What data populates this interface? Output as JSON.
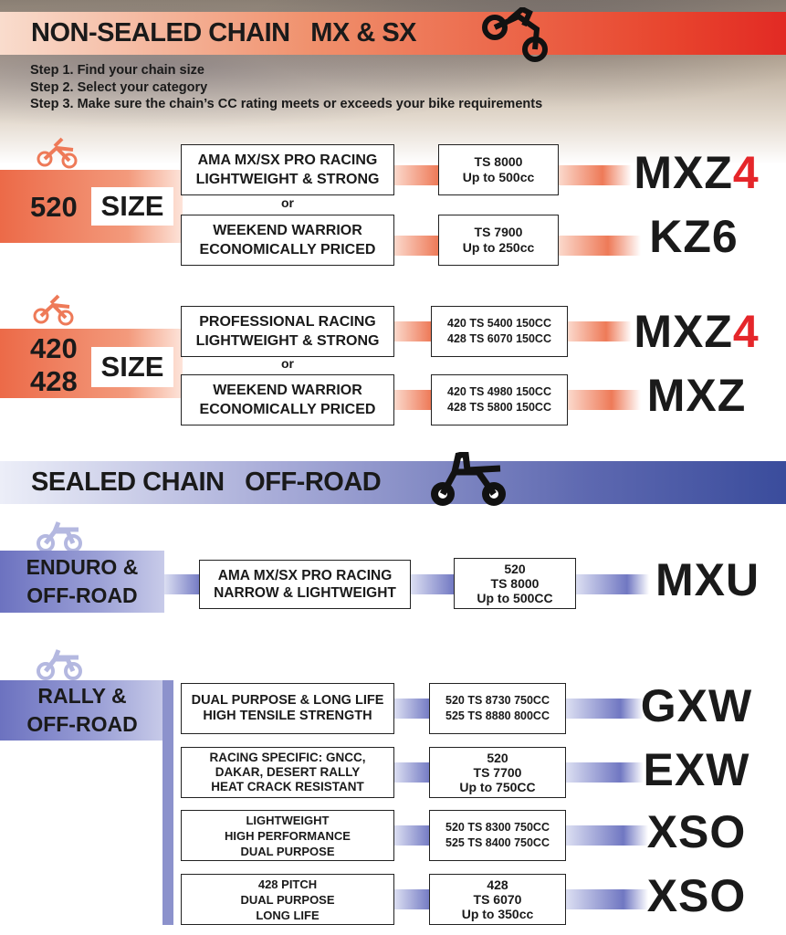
{
  "colors": {
    "non_sealed_accent": "#e8452e",
    "sealed_accent": "#3a4c9c",
    "highlight": "#e5262a"
  },
  "non_sealed": {
    "title": "NON-SEALED CHAIN   MX & SX",
    "steps": [
      "Step 1. Find your chain size",
      "Step 2. Select your category",
      "Step 3. Make sure the chain’s CC rating meets or exceeds your bike requirements"
    ],
    "groups": [
      {
        "size_num": "520",
        "size_label": "SIZE",
        "or": "or",
        "rows": [
          {
            "desc": "AMA MX/SX PRO RACING\nLIGHTWEIGHT & STRONG",
            "spec": "TS 8000\nUp to 500cc",
            "product": "MXZ",
            "product_suffix": "4"
          },
          {
            "desc": "WEEKEND WARRIOR\nECONOMICALLY PRICED",
            "spec": "TS 7900\nUp to 250cc",
            "product": "KZ6",
            "product_suffix": ""
          }
        ]
      },
      {
        "size_num": "420\n428",
        "size_label": "SIZE",
        "or": "or",
        "rows": [
          {
            "desc": "PROFESSIONAL RACING\nLIGHTWEIGHT & STRONG",
            "spec": "420  TS 5400  150CC\n428  TS 6070  150CC",
            "product": "MXZ",
            "product_suffix": "4"
          },
          {
            "desc": "WEEKEND WARRIOR\nECONOMICALLY PRICED",
            "spec": "420  TS 4980  150CC\n428  TS 5800  150CC",
            "product": "MXZ",
            "product_suffix": ""
          }
        ]
      }
    ]
  },
  "sealed": {
    "title": "SEALED CHAIN   OFF-ROAD",
    "enduro": {
      "label": "ENDURO &\nOFF-ROAD",
      "rows": [
        {
          "desc": "AMA MX/SX PRO RACING\nNARROW & LIGHTWEIGHT",
          "spec": "520\nTS 8000\nUp to 500CC",
          "product": "MXU"
        }
      ]
    },
    "rally": {
      "label": "RALLY &\nOFF-ROAD",
      "rows": [
        {
          "desc": "DUAL PURPOSE & LONG LIFE\nHIGH TENSILE STRENGTH",
          "spec": "520  TS 8730  750CC\n525  TS 8880  800CC",
          "product": "GXW"
        },
        {
          "desc": "RACING SPECIFIC: GNCC,\nDAKAR, DESERT RALLY\nHEAT CRACK RESISTANT",
          "spec": "520\nTS 7700\nUp to 750CC",
          "product": "EXW"
        },
        {
          "desc": "LIGHTWEIGHT\nHIGH PERFORMANCE\nDUAL PURPOSE",
          "spec": "520  TS 8300  750CC\n525  TS 8400  750CC",
          "product": "XSO"
        },
        {
          "desc": "428 PITCH\nDUAL PURPOSE\nLONG LIFE",
          "spec": "428\nTS 6070\nUp to 350cc",
          "product": "XSO"
        }
      ]
    }
  }
}
